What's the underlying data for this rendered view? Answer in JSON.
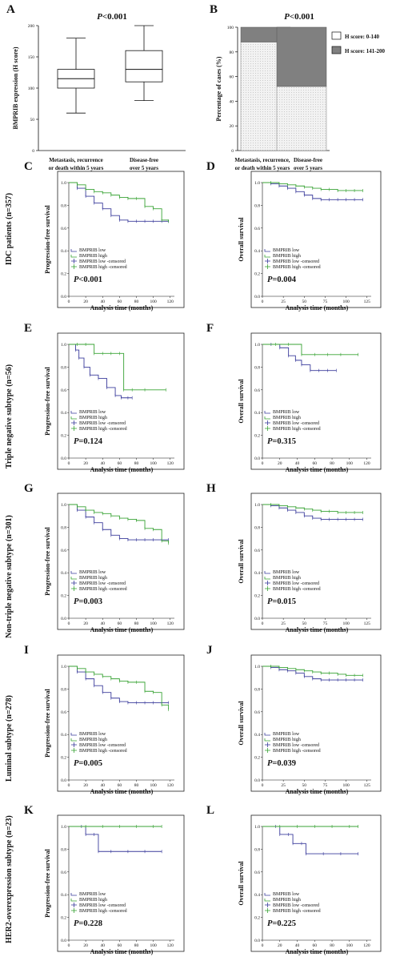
{
  "colors": {
    "low": "#3b3c9c",
    "high": "#39a335",
    "dark_bar": "#808080",
    "light_bar": "#ececec"
  },
  "row_labels": [
    "IDC patients (n=357)",
    "Triple negative subtype (n=56)",
    "Non-triple negative subtype (n=301)",
    "Luminal subtype (n=278)",
    "HER2-overexpression subtype (n=23)"
  ],
  "chart_data": [
    {
      "panel": "A",
      "type": "box",
      "title": "P<0.001",
      "ylabel": "BMPRIB expression (H score)",
      "ylim": [
        0,
        200
      ],
      "yticks": [
        0,
        50,
        100,
        150,
        200
      ],
      "categories": [
        "Metastasis, recurrence|or death within 5 years",
        "Disease-free|over 5 years"
      ],
      "boxes": [
        {
          "min": 60,
          "q1": 100,
          "median": 115,
          "q3": 130,
          "max": 180
        },
        {
          "min": 80,
          "q1": 110,
          "median": 130,
          "q3": 160,
          "max": 200
        }
      ],
      "grid": false
    },
    {
      "panel": "B",
      "type": "bar",
      "stacked": true,
      "title": "P<0.001",
      "ylabel": "Percentage of cases (%)",
      "ylim": [
        0,
        100
      ],
      "yticks": [
        0,
        20,
        40,
        60,
        80,
        100
      ],
      "categories": [
        "Metastasis, recurrence,|or death within 5 years",
        "Disease-free|over 5 years"
      ],
      "series": [
        {
          "name": "H score: 0-140",
          "values": [
            88,
            52
          ]
        },
        {
          "name": "H score: 141-200",
          "values": [
            12,
            48
          ]
        }
      ],
      "legend": "right",
      "grid": false
    },
    {
      "panel": "C",
      "type": "line",
      "ylabel": "Progression-free survival",
      "xlabel": "Analysis time (months)",
      "xlim": [
        0,
        125
      ],
      "xticks": [
        0,
        20,
        40,
        60,
        80,
        100,
        120
      ],
      "ylim": [
        0,
        1
      ],
      "yticks": [
        "0.0",
        "0.2",
        "0.4",
        "0.6",
        "0.8",
        "1.0"
      ],
      "legend": [
        "BMPRIB low",
        "BMPRIB high",
        "BMPRIB low -censored",
        "BMPRIB high -censored"
      ],
      "pvalue": "P<0.001",
      "series": [
        {
          "name": "BMPRIB low",
          "x": [
            0,
            10,
            20,
            30,
            40,
            50,
            60,
            70,
            80,
            90,
            100,
            110,
            118
          ],
          "y": [
            1.0,
            0.95,
            0.88,
            0.82,
            0.77,
            0.71,
            0.67,
            0.66,
            0.66,
            0.66,
            0.66,
            0.66,
            0.66
          ]
        },
        {
          "name": "BMPRIB high",
          "x": [
            0,
            10,
            20,
            30,
            40,
            50,
            60,
            70,
            80,
            90,
            100,
            110,
            118
          ],
          "y": [
            1.0,
            0.98,
            0.94,
            0.92,
            0.91,
            0.89,
            0.87,
            0.86,
            0.86,
            0.79,
            0.77,
            0.67,
            0.66
          ]
        }
      ]
    },
    {
      "panel": "D",
      "type": "line",
      "ylabel": "Overall survival",
      "xlabel": "Analysis time (months)",
      "xlim": [
        0,
        130
      ],
      "xticks": [
        0,
        25,
        50,
        75,
        100,
        125
      ],
      "ylim": [
        0,
        1
      ],
      "yticks": [
        "0.0",
        "0.2",
        "0.4",
        "0.6",
        "0.8",
        "1.0"
      ],
      "legend": [
        "BMPRIB low",
        "BMPRIB high",
        "BMPRIB low -censored",
        "BMPRIB high -censored"
      ],
      "pvalue": "P=0.004",
      "series": [
        {
          "name": "BMPRIB low",
          "x": [
            0,
            10,
            20,
            30,
            40,
            50,
            60,
            70,
            80,
            90,
            100,
            110,
            120
          ],
          "y": [
            1.0,
            0.99,
            0.97,
            0.95,
            0.92,
            0.89,
            0.86,
            0.85,
            0.85,
            0.85,
            0.85,
            0.85,
            0.85
          ]
        },
        {
          "name": "BMPRIB high",
          "x": [
            0,
            10,
            20,
            30,
            40,
            50,
            60,
            70,
            80,
            90,
            100,
            110,
            120
          ],
          "y": [
            1.0,
            1.0,
            0.99,
            0.98,
            0.97,
            0.96,
            0.95,
            0.94,
            0.94,
            0.93,
            0.93,
            0.93,
            0.93
          ]
        }
      ]
    },
    {
      "panel": "E",
      "type": "line",
      "ylabel": "Progression-free survival",
      "xlabel": "Analysis time (months)",
      "xlim": [
        0,
        125
      ],
      "xticks": [
        0,
        20,
        40,
        60,
        80,
        100,
        120
      ],
      "ylim": [
        0,
        1
      ],
      "yticks": [
        "0.0",
        "0.2",
        "0.4",
        "0.6",
        "0.8",
        "1.0"
      ],
      "legend": [
        "BMPRIB low",
        "BMPRIB high",
        "BMPRIB low -censored",
        "BMPRIB high -censored"
      ],
      "pvalue": "P=0.124",
      "series": [
        {
          "name": "BMPRIB low",
          "x": [
            0,
            8,
            12,
            18,
            25,
            35,
            45,
            55,
            62,
            70,
            75
          ],
          "y": [
            1.0,
            0.95,
            0.88,
            0.8,
            0.73,
            0.7,
            0.62,
            0.55,
            0.53,
            0.53,
            0.53
          ]
        },
        {
          "name": "BMPRIB high",
          "x": [
            0,
            10,
            20,
            30,
            40,
            50,
            60,
            65,
            75,
            90,
            115
          ],
          "y": [
            1.0,
            1.0,
            1.0,
            0.92,
            0.92,
            0.92,
            0.92,
            0.6,
            0.6,
            0.6,
            0.6
          ]
        }
      ]
    },
    {
      "panel": "F",
      "type": "line",
      "ylabel": "Overall survival",
      "xlabel": "Analysis time (months)",
      "xlim": [
        0,
        125
      ],
      "xticks": [
        0,
        20,
        40,
        60,
        80,
        100,
        120
      ],
      "ylim": [
        0,
        1
      ],
      "yticks": [
        "0.0",
        "0.2",
        "0.4",
        "0.6",
        "0.8",
        "1.0"
      ],
      "legend": [
        "BMPRIB low",
        "BMPRIB high",
        "BMPRIB low -censored",
        "BMPRIB high -censored"
      ],
      "pvalue": "P=0.315",
      "series": [
        {
          "name": "BMPRIB low",
          "x": [
            0,
            10,
            20,
            30,
            38,
            45,
            55,
            65,
            75,
            85
          ],
          "y": [
            1.0,
            1.0,
            0.97,
            0.9,
            0.86,
            0.82,
            0.77,
            0.77,
            0.77,
            0.77
          ]
        },
        {
          "name": "BMPRIB high",
          "x": [
            0,
            15,
            30,
            45,
            60,
            75,
            90,
            110
          ],
          "y": [
            1.0,
            1.0,
            1.0,
            0.91,
            0.91,
            0.91,
            0.91,
            0.91
          ]
        }
      ]
    },
    {
      "panel": "G",
      "type": "line",
      "ylabel": "Progression-free survival",
      "xlabel": "Analysis time (months)",
      "xlim": [
        0,
        125
      ],
      "xticks": [
        0,
        20,
        40,
        60,
        80,
        100,
        120
      ],
      "ylim": [
        0,
        1
      ],
      "yticks": [
        "0.0",
        "0.2",
        "0.4",
        "0.6",
        "0.8",
        "1.0"
      ],
      "legend": [
        "BMPRIB low",
        "BMPRIB high",
        "BMPRIB low -censored",
        "BMPRIB high -censored"
      ],
      "pvalue": "P=0.003",
      "series": [
        {
          "name": "BMPRIB low",
          "x": [
            0,
            10,
            20,
            30,
            40,
            50,
            60,
            70,
            80,
            90,
            100,
            110,
            118
          ],
          "y": [
            1.0,
            0.95,
            0.89,
            0.84,
            0.78,
            0.73,
            0.7,
            0.69,
            0.69,
            0.69,
            0.69,
            0.69,
            0.69
          ]
        },
        {
          "name": "BMPRIB high",
          "x": [
            0,
            10,
            20,
            30,
            40,
            50,
            60,
            70,
            80,
            90,
            100,
            110,
            118
          ],
          "y": [
            1.0,
            0.98,
            0.95,
            0.93,
            0.92,
            0.9,
            0.88,
            0.87,
            0.86,
            0.79,
            0.78,
            0.68,
            0.66
          ]
        }
      ]
    },
    {
      "panel": "H",
      "type": "line",
      "ylabel": "Overall survival",
      "xlabel": "Analysis time (months)",
      "xlim": [
        0,
        130
      ],
      "xticks": [
        0,
        25,
        50,
        75,
        100,
        125
      ],
      "ylim": [
        0,
        1
      ],
      "yticks": [
        "0.0",
        "0.2",
        "0.4",
        "0.6",
        "0.8",
        "1.0"
      ],
      "legend": [
        "BMPRIB low",
        "BMPRIB high",
        "BMPRIB low -censored",
        "BMPRIB high -censored"
      ],
      "pvalue": "P=0.015",
      "series": [
        {
          "name": "BMPRIB low",
          "x": [
            0,
            10,
            20,
            30,
            40,
            50,
            60,
            70,
            80,
            90,
            100,
            110,
            120
          ],
          "y": [
            1.0,
            0.99,
            0.97,
            0.95,
            0.93,
            0.9,
            0.88,
            0.87,
            0.87,
            0.87,
            0.87,
            0.87,
            0.87
          ]
        },
        {
          "name": "BMPRIB high",
          "x": [
            0,
            10,
            20,
            30,
            40,
            50,
            60,
            70,
            80,
            90,
            100,
            110,
            120
          ],
          "y": [
            1.0,
            1.0,
            0.99,
            0.98,
            0.97,
            0.96,
            0.95,
            0.94,
            0.94,
            0.93,
            0.93,
            0.93,
            0.93
          ]
        }
      ]
    },
    {
      "panel": "I",
      "type": "line",
      "ylabel": "Progression-free survival",
      "xlabel": "Analysis time (months)",
      "xlim": [
        0,
        125
      ],
      "xticks": [
        0,
        20,
        40,
        60,
        80,
        100,
        120
      ],
      "ylim": [
        0,
        1
      ],
      "yticks": [
        "0.0",
        "0.2",
        "0.4",
        "0.6",
        "0.8",
        "1.0"
      ],
      "legend": [
        "BMPRIB low",
        "BMPRIB high",
        "BMPRIB low -censored",
        "BMPRIB high -censored"
      ],
      "pvalue": "P=0.005",
      "series": [
        {
          "name": "BMPRIB low",
          "x": [
            0,
            10,
            20,
            30,
            40,
            50,
            60,
            70,
            80,
            90,
            100,
            110,
            118
          ],
          "y": [
            1.0,
            0.95,
            0.89,
            0.83,
            0.77,
            0.72,
            0.69,
            0.68,
            0.68,
            0.68,
            0.68,
            0.68,
            0.68
          ]
        },
        {
          "name": "BMPRIB high",
          "x": [
            0,
            10,
            20,
            30,
            40,
            50,
            60,
            70,
            80,
            90,
            100,
            110,
            118
          ],
          "y": [
            1.0,
            0.98,
            0.95,
            0.93,
            0.91,
            0.89,
            0.87,
            0.86,
            0.86,
            0.78,
            0.77,
            0.66,
            0.62
          ]
        }
      ]
    },
    {
      "panel": "J",
      "type": "line",
      "ylabel": "Overall survival",
      "xlabel": "Analysis time (months)",
      "xlim": [
        0,
        130
      ],
      "xticks": [
        0,
        25,
        50,
        75,
        100,
        125
      ],
      "ylim": [
        0,
        1
      ],
      "yticks": [
        "0.0",
        "0.2",
        "0.4",
        "0.6",
        "0.8",
        "1.0"
      ],
      "legend": [
        "BMPRIB low",
        "BMPRIB high",
        "BMPRIB low -censored",
        "BMPRIB high -censored"
      ],
      "pvalue": "P=0.039",
      "series": [
        {
          "name": "BMPRIB low",
          "x": [
            0,
            10,
            20,
            30,
            40,
            50,
            60,
            70,
            80,
            90,
            100,
            110,
            120
          ],
          "y": [
            1.0,
            0.99,
            0.97,
            0.96,
            0.94,
            0.91,
            0.89,
            0.88,
            0.88,
            0.88,
            0.88,
            0.88,
            0.88
          ]
        },
        {
          "name": "BMPRIB high",
          "x": [
            0,
            10,
            20,
            30,
            40,
            50,
            60,
            70,
            80,
            90,
            100,
            110,
            120
          ],
          "y": [
            1.0,
            1.0,
            0.99,
            0.98,
            0.97,
            0.96,
            0.95,
            0.94,
            0.94,
            0.93,
            0.92,
            0.92,
            0.92
          ]
        }
      ]
    },
    {
      "panel": "K",
      "type": "line",
      "ylabel": "Progression-free survival",
      "xlabel": "Analysis time (months)",
      "xlim": [
        0,
        125
      ],
      "xticks": [
        0,
        20,
        40,
        60,
        80,
        100,
        120
      ],
      "ylim": [
        0,
        1
      ],
      "yticks": [
        "0.0",
        "0.2",
        "0.4",
        "0.6",
        "0.8",
        "1.0"
      ],
      "legend": [
        "BMPRIB low",
        "BMPRIB high",
        "BMPRIB low -censored",
        "BMPRIB high -censored"
      ],
      "pvalue": "P=0.228",
      "series": [
        {
          "name": "BMPRIB low",
          "x": [
            0,
            15,
            20,
            30,
            35,
            50,
            70,
            90,
            110
          ],
          "y": [
            1.0,
            1.0,
            0.93,
            0.93,
            0.78,
            0.78,
            0.78,
            0.78,
            0.78
          ]
        },
        {
          "name": "BMPRIB high",
          "x": [
            0,
            20,
            40,
            60,
            80,
            100,
            110
          ],
          "y": [
            1.0,
            1.0,
            1.0,
            1.0,
            1.0,
            1.0,
            1.0
          ]
        }
      ]
    },
    {
      "panel": "L",
      "type": "line",
      "ylabel": "Overall survival",
      "xlabel": "Analysis time (months)",
      "xlim": [
        0,
        125
      ],
      "xticks": [
        0,
        20,
        40,
        60,
        80,
        100,
        120
      ],
      "ylim": [
        0,
        1
      ],
      "yticks": [
        "0.0",
        "0.2",
        "0.4",
        "0.6",
        "0.8",
        "1.0"
      ],
      "legend": [
        "BMPRIB low",
        "BMPRIB high",
        "BMPRIB low -censored",
        "BMPRIB high -censored"
      ],
      "pvalue": "P=0.225",
      "series": [
        {
          "name": "BMPRIB low",
          "x": [
            0,
            15,
            20,
            30,
            35,
            45,
            50,
            70,
            90,
            110
          ],
          "y": [
            1.0,
            1.0,
            0.93,
            0.93,
            0.85,
            0.85,
            0.76,
            0.76,
            0.76,
            0.76
          ]
        },
        {
          "name": "BMPRIB high",
          "x": [
            0,
            20,
            40,
            60,
            80,
            100,
            110
          ],
          "y": [
            1.0,
            1.0,
            1.0,
            1.0,
            1.0,
            1.0,
            1.0
          ]
        }
      ]
    }
  ]
}
